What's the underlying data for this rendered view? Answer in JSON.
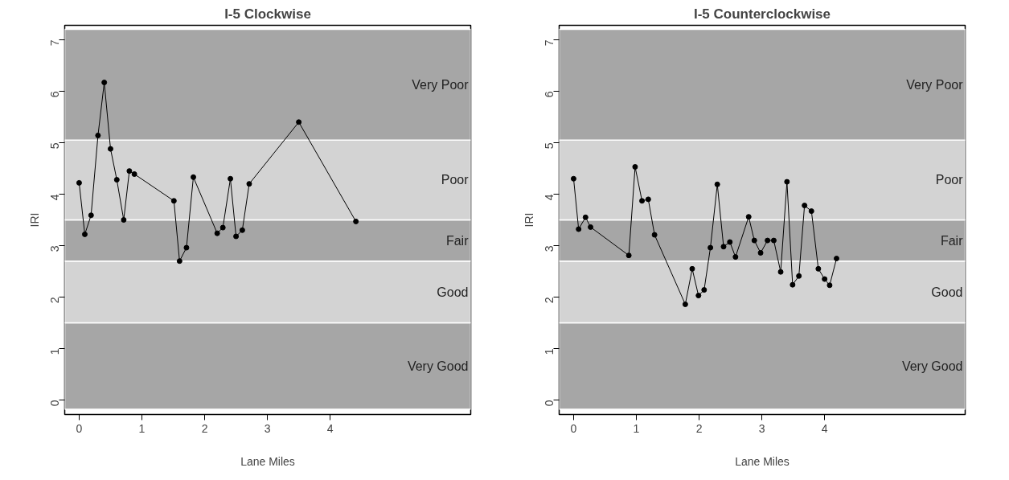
{
  "chart_data": [
    {
      "type": "line",
      "title": "I-5 Clockwise",
      "xlabel": "Lane Miles",
      "ylabel": "IRI",
      "marker": "circle",
      "line_style": "solid",
      "grid": false,
      "xlim": [
        -0.23,
        6.24
      ],
      "ylim": [
        -0.28,
        7.28
      ],
      "xticks": [
        0,
        1,
        2,
        3,
        4
      ],
      "yticks": [
        0,
        1,
        2,
        3,
        4,
        5,
        6,
        7
      ],
      "bands": [
        {
          "axis": "y",
          "from": -0.18,
          "to": 1.5,
          "label": "Very Good",
          "color": "#a6a6a6"
        },
        {
          "axis": "y",
          "from": 1.5,
          "to": 2.7,
          "label": "Good",
          "color": "#d3d3d3"
        },
        {
          "axis": "y",
          "from": 2.7,
          "to": 3.5,
          "label": "Fair",
          "color": "#a6a6a6"
        },
        {
          "axis": "y",
          "from": 3.5,
          "to": 5.05,
          "label": "Poor",
          "color": "#d3d3d3"
        },
        {
          "axis": "y",
          "from": 5.05,
          "to": 7.2,
          "label": "Very Poor",
          "color": "#a6a6a6"
        }
      ],
      "series": [
        {
          "color": "#000000",
          "x": [
            0,
            0.09,
            0.19,
            0.3,
            0.4,
            0.5,
            0.6,
            0.71,
            0.8,
            0.88,
            1.51,
            1.6,
            1.71,
            1.82,
            2.2,
            2.29,
            2.41,
            2.5,
            2.6,
            2.71,
            3.5,
            4.41
          ],
          "values": [
            4.22,
            3.22,
            3.59,
            5.14,
            6.17,
            4.88,
            4.28,
            3.5,
            4.45,
            4.39,
            3.87,
            2.7,
            2.96,
            4.33,
            3.24,
            3.35,
            4.3,
            3.18,
            3.3,
            4.2,
            5.4,
            3.47
          ]
        }
      ]
    },
    {
      "type": "line",
      "title": "I-5 Counterclockwise",
      "xlabel": "Lane Miles",
      "ylabel": "IRI",
      "marker": "circle",
      "line_style": "solid",
      "grid": false,
      "xlim": [
        -0.23,
        6.24
      ],
      "ylim": [
        -0.28,
        7.28
      ],
      "xticks": [
        0,
        1,
        2,
        3,
        4
      ],
      "yticks": [
        0,
        1,
        2,
        3,
        4,
        5,
        6,
        7
      ],
      "bands": [
        {
          "axis": "y",
          "from": -0.18,
          "to": 1.5,
          "label": "Very Good",
          "color": "#a6a6a6"
        },
        {
          "axis": "y",
          "from": 1.5,
          "to": 2.7,
          "label": "Good",
          "color": "#d3d3d3"
        },
        {
          "axis": "y",
          "from": 2.7,
          "to": 3.5,
          "label": "Fair",
          "color": "#a6a6a6"
        },
        {
          "axis": "y",
          "from": 3.5,
          "to": 5.05,
          "label": "Poor",
          "color": "#d3d3d3"
        },
        {
          "axis": "y",
          "from": 5.05,
          "to": 7.2,
          "label": "Very Poor",
          "color": "#a6a6a6"
        }
      ],
      "series": [
        {
          "color": "#000000",
          "x": [
            0,
            0.08,
            0.19,
            0.27,
            0.88,
            0.98,
            1.09,
            1.19,
            1.29,
            1.78,
            1.89,
            1.99,
            2.08,
            2.18,
            2.29,
            2.39,
            2.49,
            2.58,
            2.79,
            2.88,
            2.98,
            3.09,
            3.19,
            3.3,
            3.4,
            3.49,
            3.59,
            3.68,
            3.79,
            3.9,
            4.0,
            4.08,
            4.19
          ],
          "values": [
            4.3,
            3.32,
            3.55,
            3.36,
            2.81,
            4.53,
            3.87,
            3.9,
            3.21,
            1.86,
            2.55,
            2.03,
            2.14,
            2.96,
            4.19,
            2.98,
            3.07,
            2.78,
            3.56,
            3.1,
            2.86,
            3.1,
            3.1,
            2.49,
            4.24,
            2.24,
            2.41,
            3.78,
            3.67,
            2.55,
            2.35,
            2.23,
            2.75
          ]
        }
      ]
    }
  ]
}
